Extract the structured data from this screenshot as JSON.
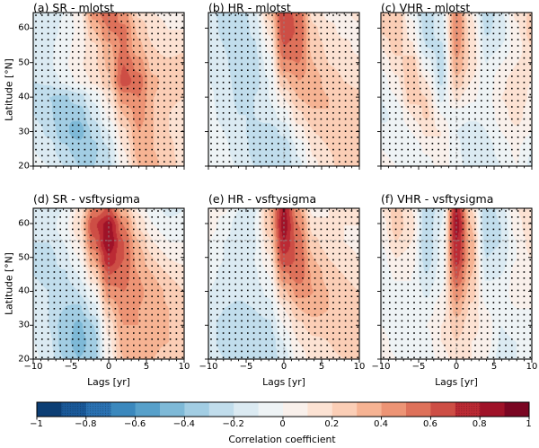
{
  "figure": {
    "background": "#ffffff",
    "text_color": "#000000",
    "axes": {
      "xlabel": "Lags [yr]",
      "ylabel": "Latitude [°N]",
      "x_tick_labels": [
        "−10",
        "−5",
        "0",
        "5",
        "10"
      ],
      "x_tick_values": [
        -10,
        -5,
        0,
        5,
        10
      ],
      "x_minor_step": 1,
      "y_tick_labels": [
        "20",
        "30",
        "40",
        "50",
        "60"
      ],
      "y_tick_values": [
        20,
        30,
        40,
        50,
        60
      ],
      "x_range": [
        -10,
        10
      ],
      "y_range": [
        20,
        64.5
      ]
    },
    "colorbar": {
      "label": "Correlation coefficient",
      "tick_labels": [
        "−1",
        "−0.8",
        "−0.6",
        "−0.4",
        "−0.2",
        "0",
        "0.2",
        "0.4",
        "0.6",
        "0.8",
        "1"
      ],
      "tick_values": [
        -1,
        -0.8,
        -0.6,
        -0.4,
        -0.2,
        0,
        0.2,
        0.4,
        0.6,
        0.8,
        1
      ],
      "range": [
        -1,
        1
      ],
      "n_bins": 20,
      "hatch_ranges": [
        [
          -0.9,
          -0.7
        ],
        [
          0.7,
          0.8
        ]
      ],
      "colormap_name": "RdBu_r",
      "colormap_stops": [
        "#053061",
        "#2166ac",
        "#4393c3",
        "#92c5de",
        "#d1e5f0",
        "#f7f7f7",
        "#fddbc7",
        "#f4a582",
        "#d6604d",
        "#b2182b",
        "#67001f"
      ]
    },
    "stipple": {
      "color": "#000000",
      "skip_abs_threshold": 0.6
    },
    "guides": {
      "color": "#909090",
      "vertical_lag": 0,
      "horizontal_lat": 55
    }
  },
  "chart_data": {
    "type": "heatmap",
    "x_label": "Lags [yr]",
    "y_label": "Latitude [°N]",
    "colorbar_label": "Correlation coefficient",
    "value_range": [
      -1,
      1
    ],
    "lags": [
      -10,
      -8,
      -6,
      -4,
      -2,
      0,
      2,
      4,
      6,
      8,
      10
    ],
    "lats": [
      64.5,
      59.6,
      54.6,
      49.7,
      44.7,
      39.8,
      34.8,
      29.9,
      24.9,
      20
    ],
    "panels": [
      {
        "id": "a",
        "title": "(a) SR - mlotst",
        "row": 0,
        "col": 0,
        "guide_lag": 0,
        "guide_lat": null,
        "values": [
          [
            -0.2,
            -0.18,
            -0.1,
            0.05,
            0.45,
            0.58,
            0.45,
            0.18,
            0.1,
            0.08,
            0.05
          ],
          [
            -0.18,
            -0.15,
            -0.08,
            0.02,
            0.3,
            0.5,
            0.52,
            0.28,
            0.15,
            0.1,
            0.1
          ],
          [
            -0.15,
            -0.12,
            -0.05,
            0.05,
            0.18,
            0.38,
            0.52,
            0.32,
            0.2,
            0.15,
            0.18
          ],
          [
            -0.15,
            -0.12,
            -0.02,
            0.08,
            0.18,
            0.32,
            0.6,
            0.45,
            0.25,
            0.22,
            0.25
          ],
          [
            -0.2,
            -0.18,
            -0.08,
            0.02,
            0.12,
            0.28,
            0.65,
            0.55,
            0.32,
            0.25,
            0.25
          ],
          [
            -0.25,
            -0.3,
            -0.32,
            -0.25,
            -0.08,
            0.12,
            0.45,
            0.5,
            0.3,
            0.22,
            0.2
          ],
          [
            -0.2,
            -0.28,
            -0.4,
            -0.38,
            -0.18,
            0.02,
            0.3,
            0.45,
            0.3,
            0.2,
            0.15
          ],
          [
            -0.15,
            -0.22,
            -0.38,
            -0.45,
            -0.28,
            -0.1,
            0.18,
            0.4,
            0.3,
            0.2,
            0.15
          ],
          [
            -0.1,
            -0.15,
            -0.28,
            -0.35,
            -0.32,
            -0.2,
            0.1,
            0.35,
            0.3,
            0.22,
            0.15
          ],
          [
            -0.08,
            -0.1,
            -0.2,
            -0.3,
            -0.3,
            -0.22,
            0.05,
            0.3,
            0.32,
            0.25,
            0.15
          ]
        ]
      },
      {
        "id": "b",
        "title": "(b) HR - mlotst",
        "row": 0,
        "col": 1,
        "guide_lag": 0,
        "guide_lat": null,
        "values": [
          [
            -0.18,
            -0.22,
            -0.28,
            -0.15,
            0.25,
            0.7,
            0.55,
            0.15,
            0.08,
            0.08,
            0.12
          ],
          [
            -0.15,
            -0.22,
            -0.3,
            -0.18,
            0.12,
            0.68,
            0.58,
            0.22,
            0.12,
            0.08,
            0.08
          ],
          [
            -0.12,
            -0.2,
            -0.28,
            -0.22,
            0.02,
            0.6,
            0.55,
            0.25,
            0.18,
            0.12,
            0.08
          ],
          [
            -0.1,
            -0.18,
            -0.28,
            -0.25,
            -0.05,
            0.48,
            0.5,
            0.3,
            0.2,
            0.18,
            0.12
          ],
          [
            -0.1,
            -0.15,
            -0.25,
            -0.25,
            -0.1,
            0.28,
            0.4,
            0.35,
            0.25,
            0.2,
            0.18
          ],
          [
            -0.08,
            -0.15,
            -0.22,
            -0.2,
            -0.1,
            0.1,
            0.3,
            0.35,
            0.3,
            0.25,
            0.22
          ],
          [
            -0.08,
            -0.12,
            -0.2,
            -0.2,
            -0.15,
            -0.05,
            0.18,
            0.28,
            0.3,
            0.25,
            0.25
          ],
          [
            -0.05,
            -0.1,
            -0.18,
            -0.22,
            -0.25,
            -0.18,
            0.05,
            0.2,
            0.25,
            0.25,
            0.28
          ],
          [
            -0.05,
            -0.08,
            -0.15,
            -0.22,
            -0.3,
            -0.28,
            -0.08,
            0.12,
            0.2,
            0.25,
            0.3
          ],
          [
            0.0,
            -0.05,
            -0.12,
            -0.2,
            -0.28,
            -0.28,
            -0.12,
            0.08,
            0.18,
            0.25,
            0.3
          ]
        ]
      },
      {
        "id": "c",
        "title": "(c) VHR - mlotst",
        "row": 0,
        "col": 2,
        "guide_lag": 0,
        "guide_lat": null,
        "values": [
          [
            0.28,
            0.3,
            -0.02,
            -0.28,
            -0.12,
            0.5,
            0.1,
            -0.28,
            -0.12,
            0.12,
            0.22
          ],
          [
            0.22,
            0.3,
            0.05,
            -0.25,
            -0.15,
            0.5,
            0.15,
            -0.22,
            -0.15,
            0.08,
            0.25
          ],
          [
            0.1,
            0.25,
            0.12,
            -0.2,
            -0.22,
            0.45,
            0.18,
            -0.15,
            -0.1,
            0.05,
            0.2
          ],
          [
            0.02,
            0.15,
            0.28,
            -0.05,
            -0.25,
            0.38,
            0.18,
            -0.1,
            0.0,
            0.1,
            0.15
          ],
          [
            -0.05,
            0.08,
            0.3,
            0.1,
            -0.22,
            0.28,
            0.1,
            -0.08,
            0.08,
            0.15,
            0.1
          ],
          [
            -0.1,
            0.0,
            0.25,
            0.2,
            -0.12,
            0.12,
            0.02,
            -0.05,
            0.1,
            0.18,
            0.08
          ],
          [
            -0.12,
            -0.08,
            0.1,
            0.22,
            0.0,
            -0.05,
            -0.08,
            -0.08,
            0.05,
            0.15,
            0.02
          ],
          [
            -0.08,
            -0.1,
            0.0,
            0.12,
            0.1,
            -0.1,
            -0.15,
            -0.1,
            0.0,
            0.08,
            0.0
          ],
          [
            0.0,
            -0.05,
            -0.08,
            0.02,
            0.1,
            -0.08,
            -0.18,
            -0.15,
            -0.05,
            0.02,
            -0.1
          ],
          [
            0.05,
            0.0,
            -0.1,
            -0.05,
            0.05,
            -0.05,
            -0.18,
            -0.18,
            -0.1,
            0.0,
            -0.12
          ]
        ]
      },
      {
        "id": "d",
        "title": "(d) SR - vsftysigma",
        "row": 1,
        "col": 0,
        "guide_lag": 0,
        "guide_lat": 55,
        "values": [
          [
            -0.15,
            -0.18,
            -0.1,
            0.12,
            0.5,
            0.62,
            0.32,
            0.08,
            -0.08,
            -0.12,
            -0.1
          ],
          [
            -0.15,
            -0.15,
            -0.05,
            0.18,
            0.68,
            0.85,
            0.5,
            0.18,
            0.0,
            -0.08,
            -0.08
          ],
          [
            -0.2,
            -0.2,
            -0.1,
            0.1,
            0.58,
            0.88,
            0.6,
            0.3,
            0.1,
            0.0,
            0.0
          ],
          [
            -0.25,
            -0.25,
            -0.15,
            0.0,
            0.4,
            0.78,
            0.6,
            0.35,
            0.2,
            0.1,
            0.08
          ],
          [
            -0.2,
            -0.25,
            -0.22,
            -0.1,
            0.2,
            0.6,
            0.55,
            0.4,
            0.3,
            0.2,
            0.15
          ],
          [
            -0.15,
            -0.2,
            -0.28,
            -0.2,
            0.0,
            0.45,
            0.5,
            0.42,
            0.35,
            0.28,
            0.2
          ],
          [
            -0.1,
            -0.2,
            -0.3,
            -0.32,
            -0.15,
            0.28,
            0.45,
            0.4,
            0.35,
            0.3,
            0.25
          ],
          [
            -0.1,
            -0.2,
            -0.35,
            -0.42,
            -0.3,
            0.15,
            0.4,
            0.4,
            0.35,
            0.3,
            0.25
          ],
          [
            -0.1,
            -0.18,
            -0.35,
            -0.45,
            -0.35,
            0.08,
            0.35,
            0.35,
            0.32,
            0.3,
            0.25
          ],
          [
            -0.08,
            -0.15,
            -0.3,
            -0.4,
            -0.35,
            0.05,
            0.3,
            0.3,
            0.3,
            0.25,
            0.2
          ]
        ]
      },
      {
        "id": "e",
        "title": "(e) HR - vsftysigma",
        "row": 1,
        "col": 1,
        "guide_lag": 0,
        "guide_lat": 55,
        "values": [
          [
            0.1,
            0.02,
            -0.1,
            -0.12,
            0.3,
            0.82,
            0.4,
            0.05,
            0.1,
            0.12,
            0.1
          ],
          [
            0.05,
            -0.05,
            -0.15,
            -0.1,
            0.28,
            0.85,
            0.5,
            0.15,
            0.1,
            0.1,
            0.1
          ],
          [
            0.0,
            -0.1,
            -0.15,
            -0.12,
            0.18,
            0.8,
            0.55,
            0.22,
            0.15,
            0.1,
            0.08
          ],
          [
            -0.05,
            -0.1,
            -0.15,
            -0.1,
            0.08,
            0.68,
            0.58,
            0.3,
            0.2,
            0.15,
            0.1
          ],
          [
            -0.08,
            -0.12,
            -0.15,
            -0.12,
            0.0,
            0.48,
            0.55,
            0.38,
            0.25,
            0.2,
            0.15
          ],
          [
            -0.1,
            -0.15,
            -0.18,
            -0.15,
            -0.08,
            0.28,
            0.45,
            0.4,
            0.3,
            0.25,
            0.2
          ],
          [
            -0.15,
            -0.2,
            -0.22,
            -0.2,
            -0.15,
            0.1,
            0.3,
            0.35,
            0.3,
            0.25,
            0.25
          ],
          [
            -0.18,
            -0.22,
            -0.25,
            -0.25,
            -0.22,
            0.0,
            0.18,
            0.25,
            0.25,
            0.25,
            0.28
          ],
          [
            -0.18,
            -0.22,
            -0.25,
            -0.28,
            -0.28,
            -0.1,
            0.1,
            0.18,
            0.2,
            0.25,
            0.3
          ],
          [
            -0.15,
            -0.2,
            -0.22,
            -0.28,
            -0.28,
            -0.15,
            0.05,
            0.15,
            0.18,
            0.2,
            0.25
          ]
        ]
      },
      {
        "id": "f",
        "title": "(f) VHR - vsftysigma",
        "row": 1,
        "col": 2,
        "guide_lag": 0,
        "guide_lat": 55,
        "values": [
          [
            0.1,
            0.25,
            0.1,
            -0.28,
            -0.15,
            0.8,
            0.2,
            -0.3,
            -0.15,
            0.1,
            0.2
          ],
          [
            0.05,
            0.25,
            0.15,
            -0.28,
            -0.1,
            0.85,
            0.3,
            -0.3,
            -0.2,
            0.05,
            0.2
          ],
          [
            0.0,
            0.2,
            0.1,
            -0.3,
            -0.08,
            0.8,
            0.35,
            -0.25,
            -0.2,
            0.0,
            0.15
          ],
          [
            -0.05,
            0.1,
            0.05,
            -0.25,
            -0.08,
            0.75,
            0.35,
            -0.2,
            -0.15,
            0.0,
            0.1
          ],
          [
            -0.08,
            0.02,
            0.0,
            -0.2,
            -0.05,
            0.62,
            0.3,
            -0.12,
            -0.1,
            0.05,
            0.1
          ],
          [
            -0.1,
            -0.05,
            0.0,
            -0.12,
            0.0,
            0.48,
            0.25,
            -0.05,
            -0.05,
            0.05,
            0.05
          ],
          [
            -0.05,
            -0.1,
            -0.05,
            -0.05,
            0.05,
            0.35,
            0.18,
            0.0,
            -0.05,
            0.0,
            0.0
          ],
          [
            0.0,
            -0.1,
            -0.1,
            0.0,
            0.1,
            0.25,
            0.15,
            0.05,
            -0.1,
            -0.05,
            -0.05
          ],
          [
            0.05,
            -0.05,
            -0.1,
            -0.05,
            0.1,
            0.2,
            0.1,
            0.05,
            -0.12,
            -0.1,
            -0.08
          ],
          [
            0.08,
            0.0,
            -0.1,
            -0.08,
            0.05,
            0.15,
            0.1,
            0.0,
            -0.15,
            -0.1,
            -0.05
          ]
        ]
      }
    ]
  }
}
